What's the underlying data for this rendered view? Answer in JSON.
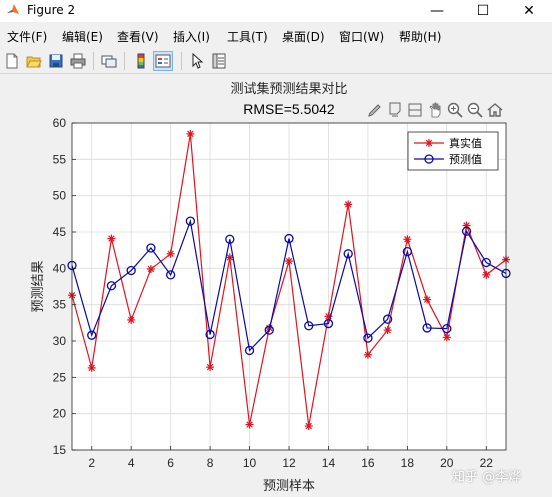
{
  "window": {
    "title": "Figure 2",
    "controls": {
      "minimize": "—",
      "maximize": "☐",
      "close": "✕"
    }
  },
  "menubar": {
    "items": [
      "文件(F)",
      "编辑(E)",
      "查看(V)",
      "插入(I)",
      "工具(T)",
      "桌面(D)",
      "窗口(W)",
      "帮助(H)"
    ]
  },
  "toolbar": {
    "buttons": [
      "new-figure-icon",
      "open-file-icon",
      "save-icon",
      "print-icon",
      "link-plot-icon",
      "insert-colorbar-icon",
      "insert-legend-icon",
      "pointer-icon",
      "property-inspector-icon"
    ]
  },
  "axes_toolbar": {
    "buttons": [
      "brush-icon",
      "data-tips-icon",
      "rotate-icon",
      "pan-icon",
      "zoom-in-icon",
      "zoom-out-icon",
      "home-icon"
    ]
  },
  "colors": {
    "true_series": "#e0141e",
    "pred_series": "#0a0aa8",
    "grid": "#dcdcdc",
    "axes_bg": "#ffffff"
  },
  "chart_data": {
    "type": "line",
    "title": "测试集预测结果对比",
    "subtitle": "RMSE=5.5042",
    "xlabel": "预测样本",
    "ylabel": "预测结果",
    "xlim": [
      1,
      23
    ],
    "ylim": [
      15,
      60
    ],
    "xticks": [
      2,
      4,
      6,
      8,
      10,
      12,
      14,
      16,
      18,
      20,
      22
    ],
    "yticks": [
      15,
      20,
      25,
      30,
      35,
      40,
      45,
      50,
      55,
      60
    ],
    "grid": true,
    "legend_position": "top-right",
    "x": [
      1,
      2,
      3,
      4,
      5,
      6,
      7,
      8,
      9,
      10,
      11,
      12,
      13,
      14,
      15,
      16,
      17,
      18,
      19,
      20,
      21,
      22,
      23
    ],
    "series": [
      {
        "name": "真实值",
        "marker": "*",
        "values": [
          36.3,
          26.3,
          44.1,
          32.9,
          39.9,
          42.0,
          58.5,
          26.4,
          41.5,
          18.5,
          31.8,
          41.0,
          18.3,
          33.4,
          48.8,
          28.1,
          31.5,
          44.0,
          35.7,
          30.5,
          45.9,
          39.1,
          41.2
        ]
      },
      {
        "name": "预测值",
        "marker": "o",
        "values": [
          40.4,
          30.8,
          37.6,
          39.7,
          42.8,
          39.1,
          46.5,
          30.9,
          44.0,
          28.7,
          31.5,
          44.1,
          32.1,
          32.4,
          42.0,
          30.4,
          33.0,
          42.3,
          31.8,
          31.7,
          45.1,
          40.8,
          39.3
        ]
      }
    ]
  },
  "watermark": "知乎 @李烨"
}
